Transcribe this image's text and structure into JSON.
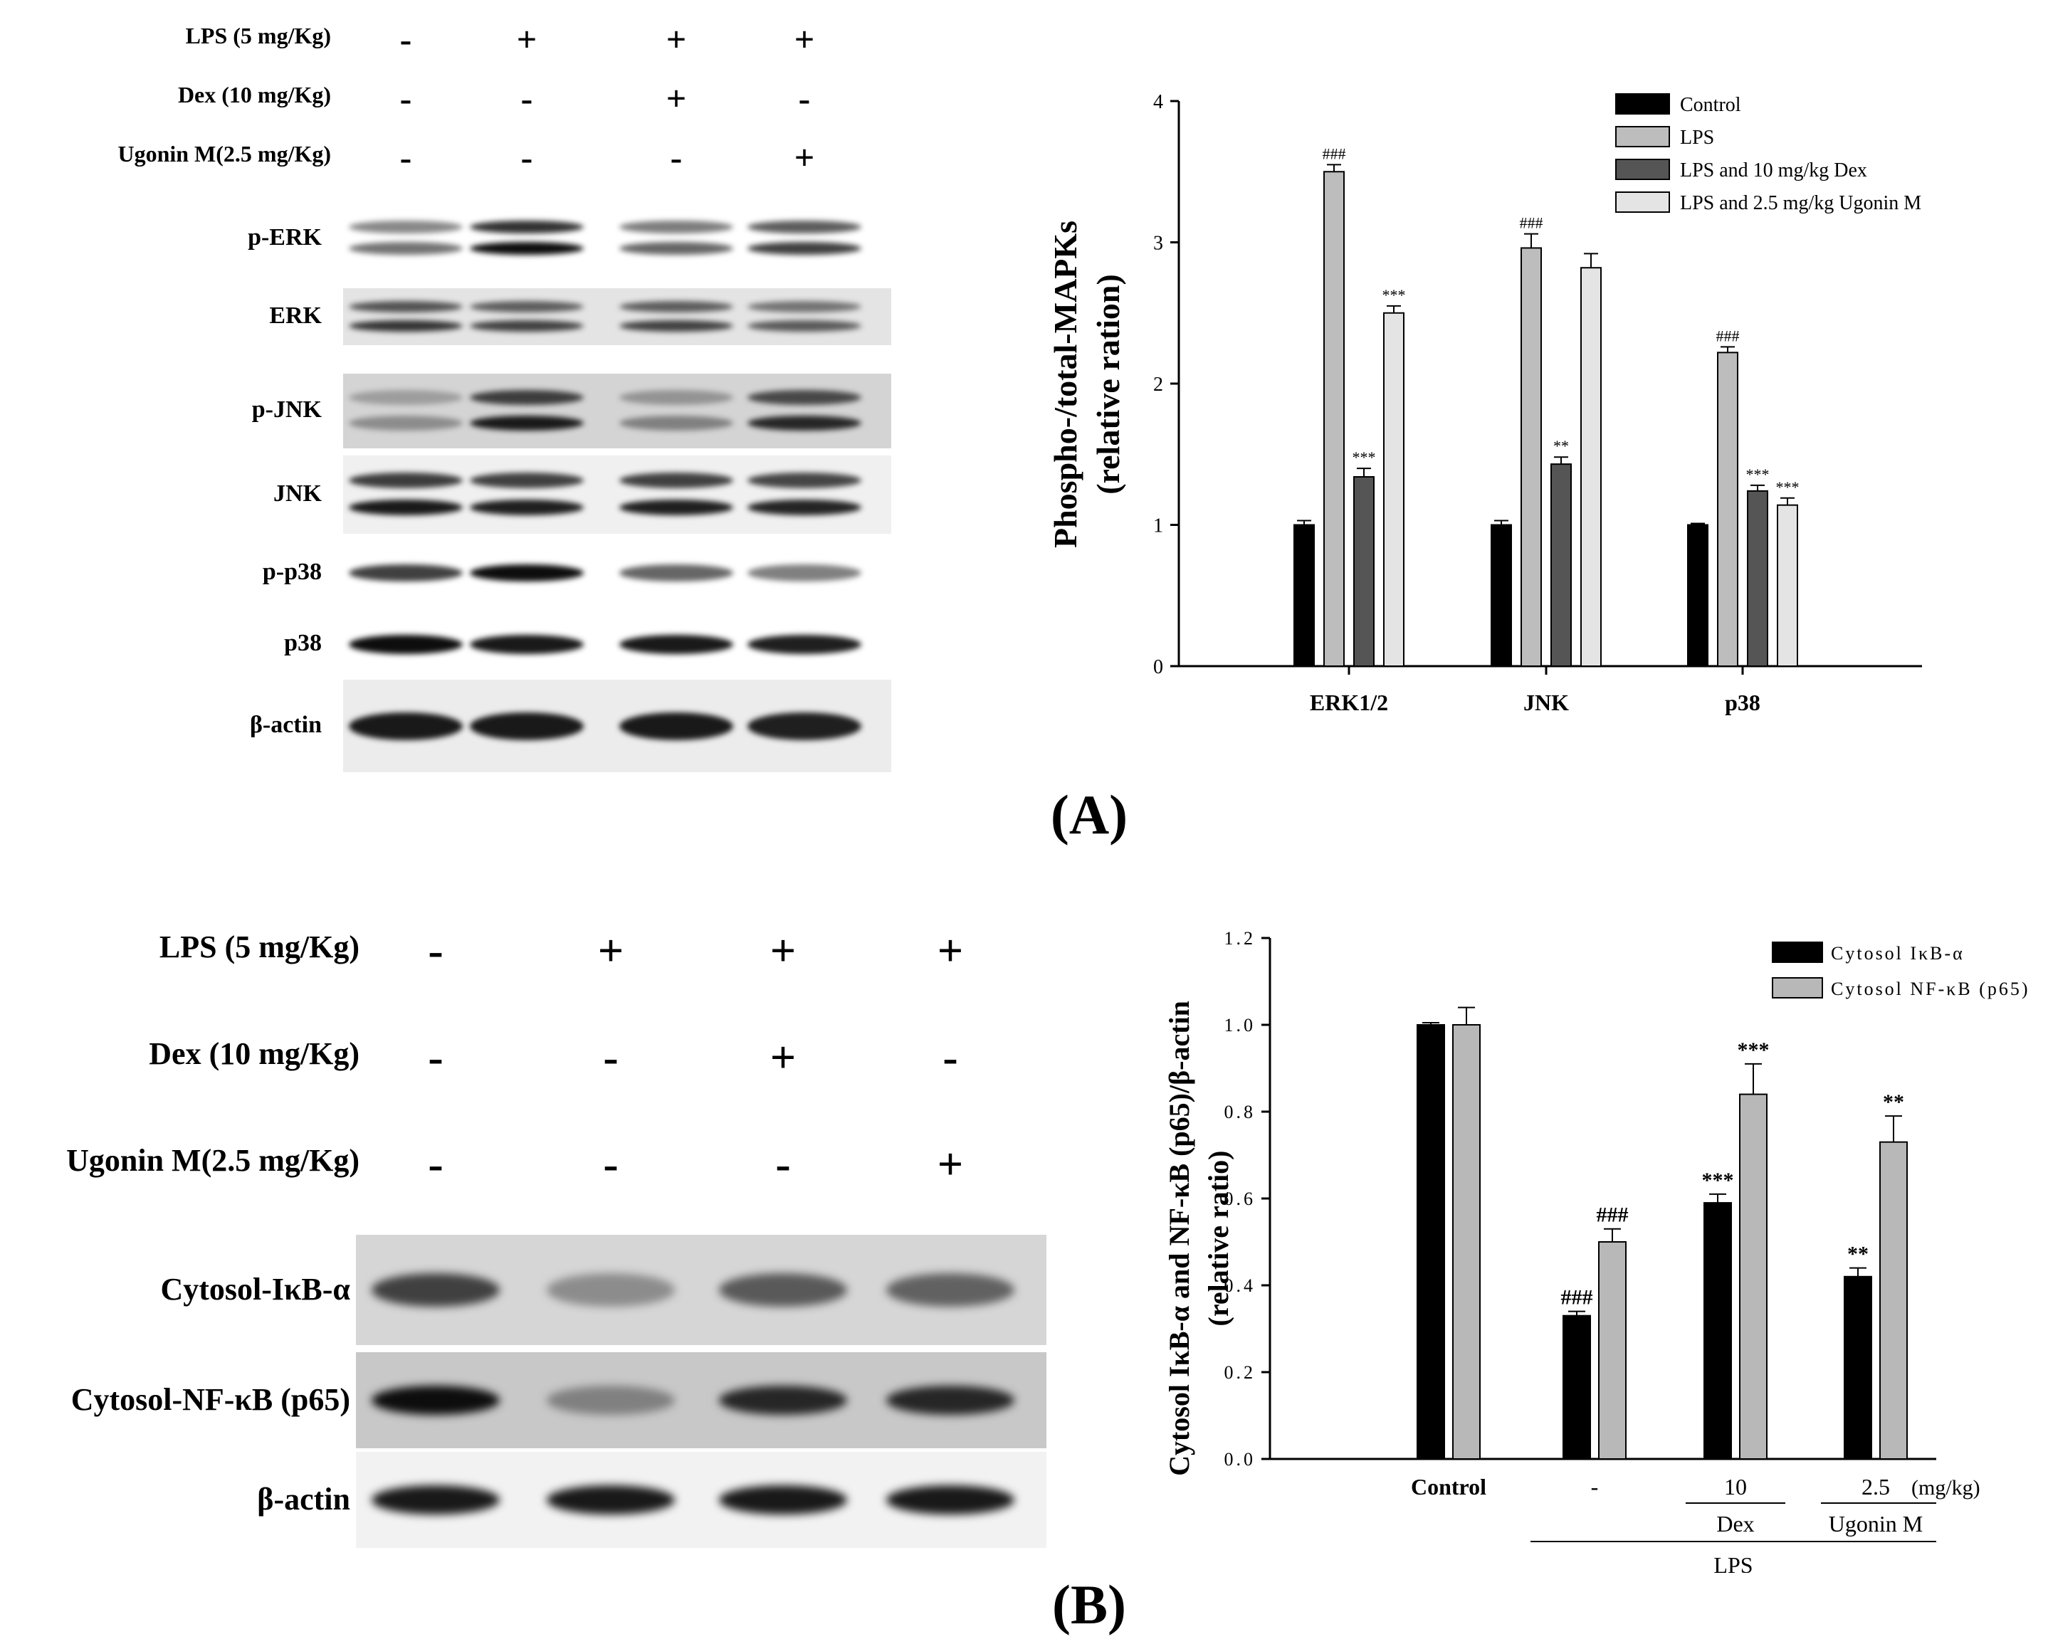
{
  "panelA": {
    "letter": "(A)",
    "conditions": [
      {
        "label": "LPS (5 mg/Kg)",
        "signs": [
          "-",
          "+",
          "+",
          "+"
        ]
      },
      {
        "label": "Dex (10 mg/Kg)",
        "signs": [
          "-",
          "-",
          "+",
          "-"
        ]
      },
      {
        "label": "Ugonin M(2.5 mg/Kg)",
        "signs": [
          "-",
          "-",
          "-",
          "+"
        ]
      }
    ],
    "blots": [
      {
        "label": "p-ERK",
        "intensity": [
          0.55,
          0.95,
          0.6,
          0.75
        ],
        "bands": 2,
        "bg": "#ffffff"
      },
      {
        "label": "ERK",
        "intensity": [
          0.8,
          0.75,
          0.75,
          0.65
        ],
        "bands": 2,
        "bg": "#e4e4e4"
      },
      {
        "label": "p-JNK",
        "intensity": [
          0.45,
          0.9,
          0.5,
          0.85
        ],
        "bands": 2,
        "bg": "#d4d4d4"
      },
      {
        "label": "JNK",
        "intensity": [
          0.9,
          0.88,
          0.88,
          0.86
        ],
        "bands": 2,
        "bg": "#f0f0f0"
      },
      {
        "label": "p-p38",
        "intensity": [
          0.75,
          0.95,
          0.6,
          0.5
        ],
        "bands": 1,
        "bg": "#ffffff"
      },
      {
        "label": "p38",
        "intensity": [
          0.95,
          0.9,
          0.9,
          0.88
        ],
        "bands": 1,
        "bg": "#ffffff"
      },
      {
        "label": "β-actin",
        "intensity": [
          0.9,
          0.9,
          0.9,
          0.88
        ],
        "bands": 1,
        "bg": "#ececec"
      }
    ]
  },
  "panelB": {
    "letter": "(B)",
    "conditions": [
      {
        "label": "LPS (5 mg/Kg)",
        "signs": [
          "-",
          "+",
          "+",
          "+"
        ]
      },
      {
        "label": "Dex (10 mg/Kg)",
        "signs": [
          "-",
          "-",
          "+",
          "-"
        ]
      },
      {
        "label": "Ugonin M(2.5 mg/Kg)",
        "signs": [
          "-",
          "-",
          "-",
          "+"
        ]
      }
    ],
    "blots": [
      {
        "label": "Cytosol-IκB-α",
        "intensity": [
          0.75,
          0.45,
          0.65,
          0.62
        ],
        "bands": 1,
        "bg": "#d6d6d6"
      },
      {
        "label": "Cytosol-NF-κB (p65)",
        "intensity": [
          0.95,
          0.5,
          0.85,
          0.85
        ],
        "bands": 1,
        "bg": "#c8c8c8"
      },
      {
        "label": "β-actin",
        "intensity": [
          0.9,
          0.9,
          0.9,
          0.9
        ],
        "bands": 1,
        "bg": "#f2f2f2"
      }
    ]
  },
  "colors": {
    "control": "#000000",
    "lps": "#bdbdbd",
    "dex": "#555555",
    "ugonin": "#e4e4e4",
    "ikb": "#000000",
    "nfkb": "#b8b8b8"
  },
  "chart_data": [
    {
      "type": "bar",
      "ylabel": "Phospho-/total-MAPKs",
      "ylabel2": "(relative ration)",
      "categories": [
        "ERK1/2",
        "JNK",
        "p38"
      ],
      "ylim": [
        0,
        4
      ],
      "yticks": [
        "0",
        "1",
        "2",
        "3",
        "4"
      ],
      "legend_position": "top-right",
      "series": [
        {
          "name": "Control",
          "values": [
            1.0,
            1.0,
            1.0
          ],
          "errors": [
            0.03,
            0.03,
            0.01
          ],
          "annotations": [
            "",
            "",
            ""
          ]
        },
        {
          "name": "LPS",
          "values": [
            3.5,
            2.96,
            2.22
          ],
          "errors": [
            0.05,
            0.1,
            0.04
          ],
          "annotations": [
            "###",
            "###",
            "###"
          ]
        },
        {
          "name": "LPS and 10 mg/kg Dex",
          "values": [
            1.34,
            1.43,
            1.24
          ],
          "errors": [
            0.06,
            0.05,
            0.04
          ],
          "annotations": [
            "***",
            "**",
            "***"
          ]
        },
        {
          "name": "LPS and 2.5 mg/kg Ugonin M",
          "values": [
            2.5,
            2.82,
            1.14
          ],
          "errors": [
            0.05,
            0.1,
            0.05
          ],
          "annotations": [
            "***",
            "",
            "***"
          ]
        }
      ]
    },
    {
      "type": "bar",
      "ylabel": "Cytosol IκB-α and NF-κB (p65)/β-actin",
      "ylabel2": "(relative ratio)",
      "categories": [
        "Control",
        "-",
        "10",
        "2.5"
      ],
      "unit_label": "(mg/kg)",
      "group_labels": [
        "Dex",
        "Ugonin M"
      ],
      "outer_label": "LPS",
      "ylim": [
        0,
        1.2
      ],
      "yticks": [
        "0.0",
        "0.2",
        "0.4",
        "0.6",
        "0.8",
        "1.0",
        "1.2"
      ],
      "legend_position": "top-right",
      "series": [
        {
          "name": "Cytosol IκB-α",
          "values": [
            1.0,
            0.33,
            0.59,
            0.42
          ],
          "errors": [
            0.005,
            0.01,
            0.02,
            0.02
          ],
          "annotations": [
            "",
            "###",
            "***",
            "**"
          ]
        },
        {
          "name": "Cytosol NF-κB (p65)",
          "values": [
            1.0,
            0.5,
            0.84,
            0.73
          ],
          "errors": [
            0.04,
            0.03,
            0.07,
            0.06
          ],
          "annotations": [
            "",
            "###",
            "***",
            "**"
          ]
        }
      ]
    }
  ]
}
